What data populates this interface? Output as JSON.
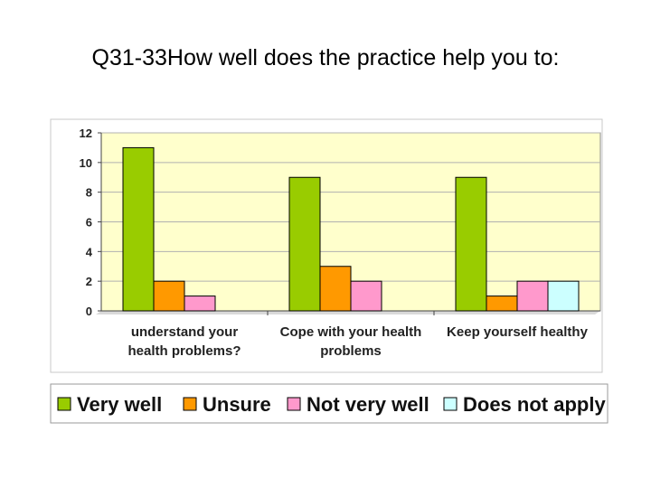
{
  "slide": {
    "title": "Q31-33How well does the practice help you to:"
  },
  "chart_data": {
    "type": "bar",
    "title": "Q31-33How well does the practice help you to:",
    "xlabel": "",
    "ylabel": "",
    "ylim": [
      0,
      12
    ],
    "yticks": [
      0,
      2,
      4,
      6,
      8,
      10,
      12
    ],
    "grid": true,
    "legend_placement": "bottom",
    "plot_background": "#ffffcc",
    "categories": [
      [
        "understand your",
        "health problems?"
      ],
      [
        "Cope with your health",
        "problems"
      ],
      [
        "Keep yourself healthy"
      ]
    ],
    "series": [
      {
        "name": "Very well",
        "color": "#99cc00",
        "values": [
          11,
          9,
          9
        ]
      },
      {
        "name": "Unsure",
        "color": "#ff9900",
        "values": [
          2,
          3,
          1
        ]
      },
      {
        "name": "Not very well",
        "color": "#ff99cc",
        "values": [
          1,
          2,
          2
        ]
      },
      {
        "name": "Does not apply",
        "color": "#ccffff",
        "values": [
          0,
          0,
          2
        ]
      }
    ]
  }
}
